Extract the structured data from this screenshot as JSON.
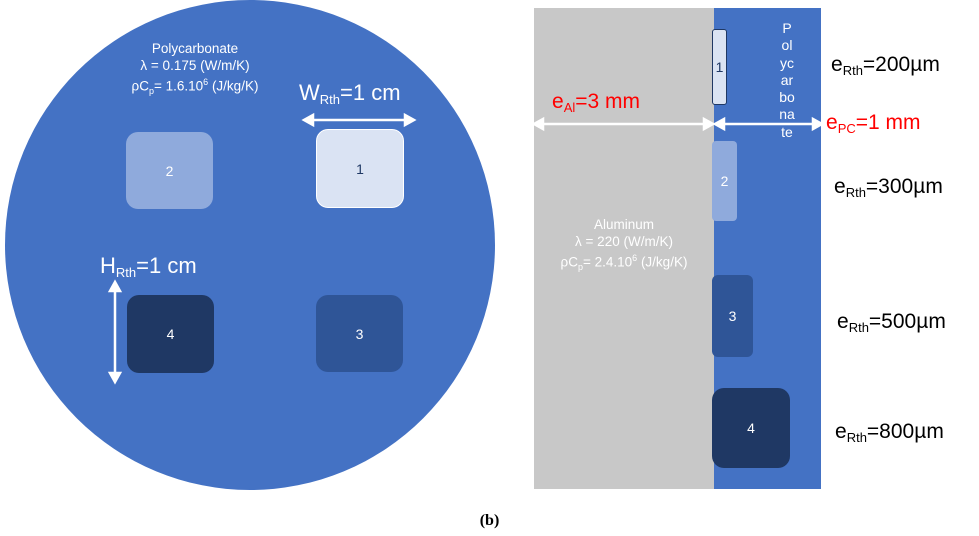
{
  "left": {
    "material_title": "Polycarbonate",
    "lambda_line": "λ = 0.175 (W/m/K)",
    "rhocp_main": "ρC",
    "rhocp_sub": "p",
    "rhocp_rest": "= 1.6.10",
    "rhocp_exp": "6",
    "rhocp_unit": " (J/kg/K)",
    "width_main": "W",
    "width_sub": "Rth",
    "width_value": "=1 cm",
    "height_main": "H",
    "height_sub": "Rth",
    "height_value": "=1 cm",
    "squares": [
      "1",
      "2",
      "3",
      "4"
    ],
    "colors": {
      "disk": "#4472c4",
      "sq1": "#dae3f3",
      "sq2": "#8faadc",
      "sq3": "#2f5597",
      "sq4": "#1f3864"
    }
  },
  "right": {
    "al_main": "e",
    "al_sub": "Al",
    "al_value": "=3 mm",
    "pc_main": "e",
    "pc_sub": "PC",
    "pc_value": "=1 mm",
    "al_material": "Aluminum",
    "al_lambda": "λ = 220 (W/m/K)",
    "al_rhocp_main": "ρC",
    "al_rhocp_sub": "p",
    "al_rhocp_rest": "= 2.4.10",
    "al_rhocp_exp": "6",
    "al_rhocp_unit": " (J/kg/K)",
    "vertical_word": "Polycarbonate",
    "squares": [
      "1",
      "2",
      "3",
      "4"
    ],
    "labels": [
      {
        "main": "e",
        "sub": "Rth",
        "value": "=200µm"
      },
      {
        "main": "e",
        "sub": "Rth",
        "value": "=300µm"
      },
      {
        "main": "e",
        "sub": "Rth",
        "value": "=500µm"
      },
      {
        "main": "e",
        "sub": "Rth",
        "value": "=800µm"
      }
    ],
    "colors": {
      "aluminum": "#c8c8c8",
      "red_label": "#ff0000"
    }
  },
  "caption": "(b)"
}
